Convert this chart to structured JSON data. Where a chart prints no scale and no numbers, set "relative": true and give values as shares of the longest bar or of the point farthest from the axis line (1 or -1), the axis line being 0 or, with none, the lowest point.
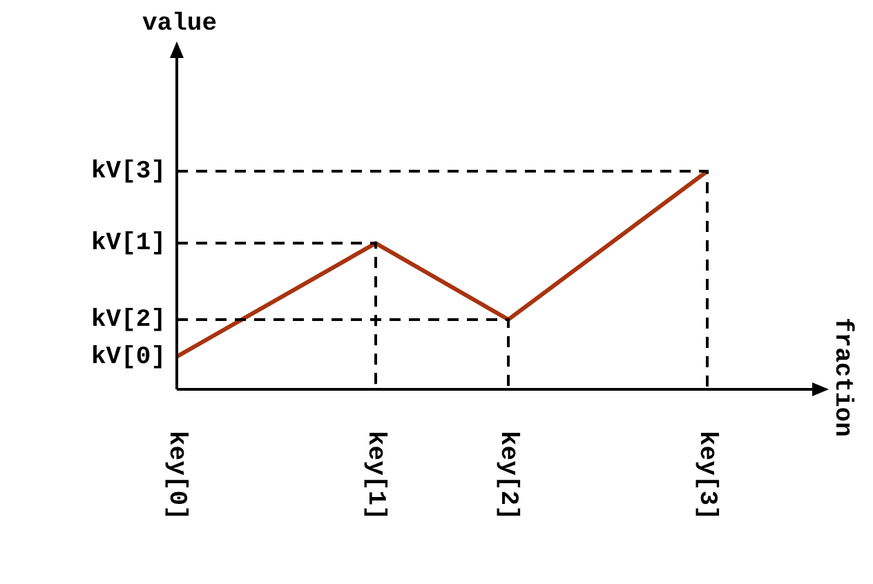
{
  "chart_data": {
    "type": "line",
    "relative": true,
    "categories": [
      "key[0]",
      null,
      null,
      "key[1]",
      null,
      "key[2]",
      null,
      null,
      "key[3]",
      null
    ],
    "series": [
      {
        "color": "#a8340f",
        "values": [
          0.15,
          null,
          null,
          0.67,
          null,
          0.32,
          null,
          null,
          1,
          null
        ]
      }
    ],
    "annotations": [
      "kV[0]",
      "kV[1]",
      "kV[2]",
      "kV[3]",
      "value",
      "fraction"
    ],
    "grid": false,
    "legend": false,
    "marker": "none",
    "line_style": "solid"
  }
}
